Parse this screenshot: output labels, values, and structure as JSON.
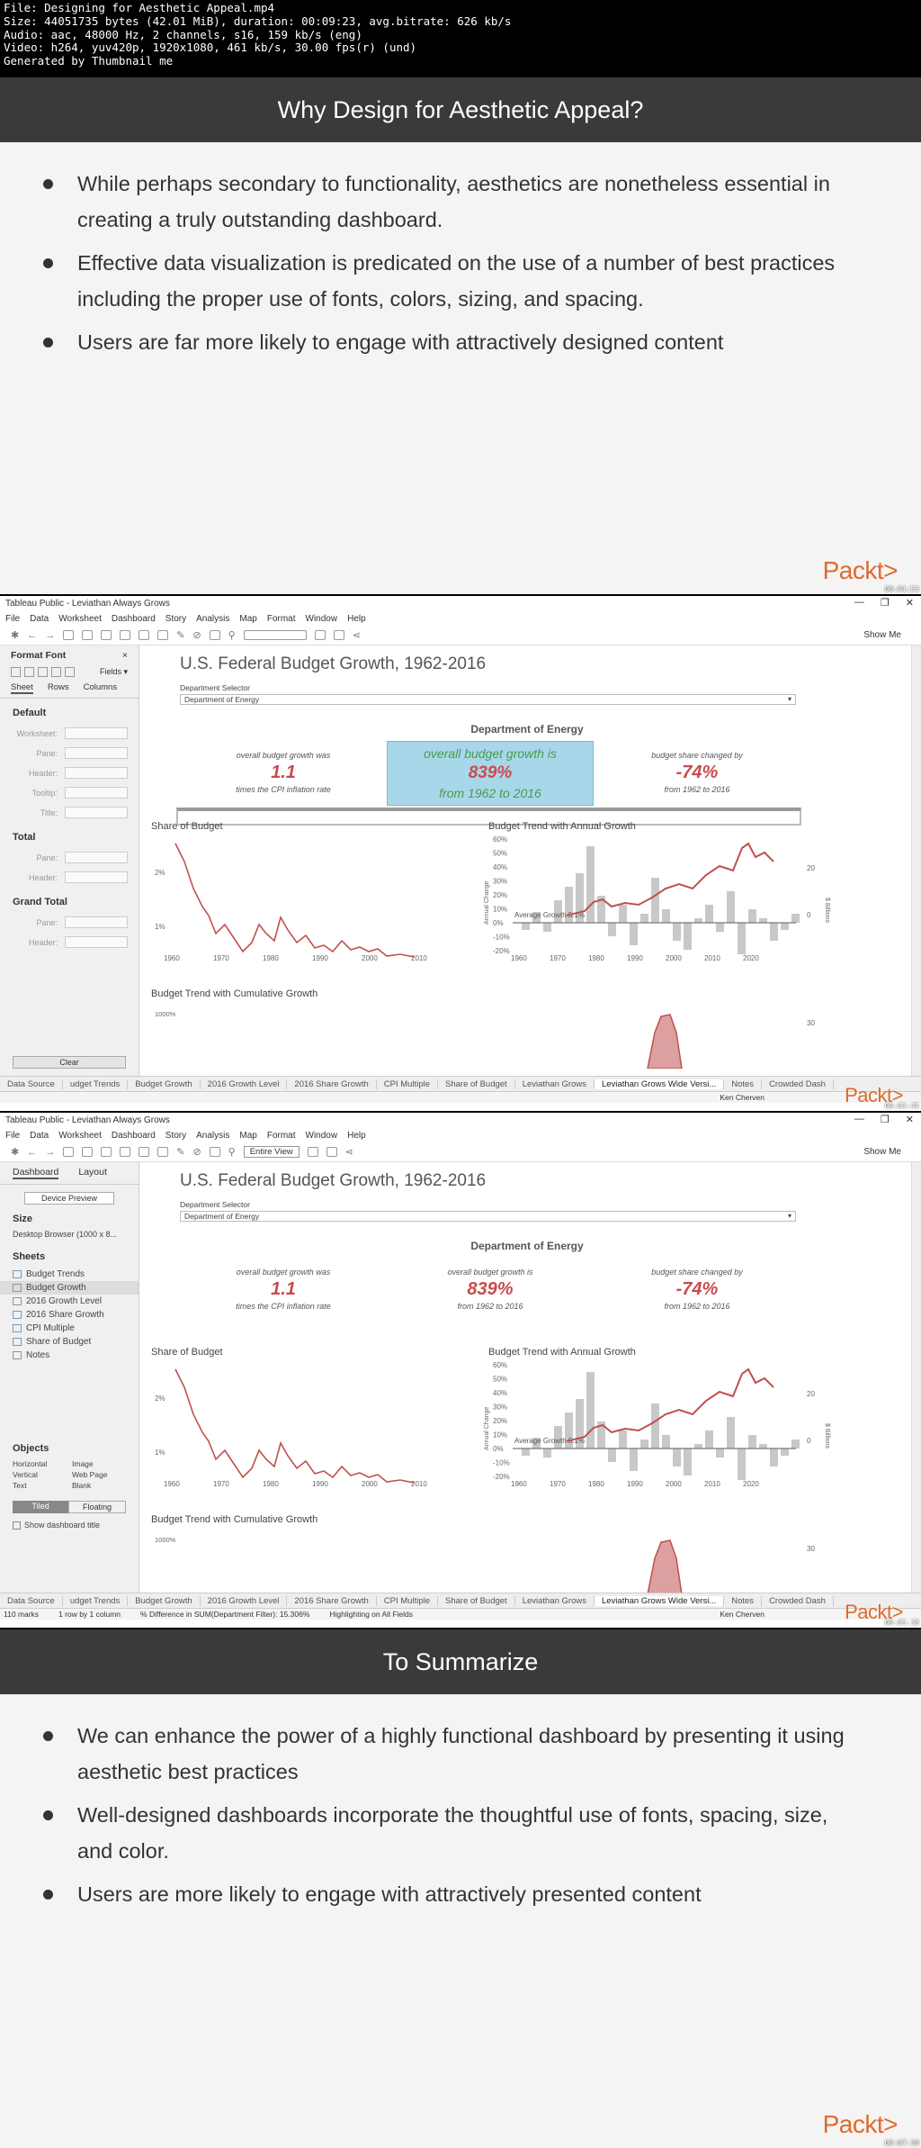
{
  "header": {
    "lines": [
      "File: Designing for Aesthetic Appeal.mp4",
      "Size: 44051735 bytes (42.01 MiB), duration: 00:09:23, avg.bitrate: 626 kb/s",
      "Audio: aac, 48000 Hz, 2 channels, s16, 159 kb/s (eng)",
      "Video: h264, yuv420p, 1920x1080, 461 kb/s, 30.00 fps(r) (und)",
      "Generated by Thumbnail me"
    ]
  },
  "frame1": {
    "title": "Why Design for Aesthetic Appeal?",
    "bullets": [
      "While perhaps secondary to functionality, aesthetics are nonetheless essential in creating a truly outstanding dashboard.",
      "Effective data visualization is predicated on the use of a number of best practices including the proper use of fonts, colors, sizing, and spacing.",
      "Users are far more likely to engage with attractively designed content"
    ],
    "logo": "Packt>",
    "timestamp": "00:01:53"
  },
  "app": {
    "window_title": "Tableau Public - Leviathan Always Grows",
    "menu": [
      "File",
      "Data",
      "Worksheet",
      "Dashboard",
      "Story",
      "Analysis",
      "Map",
      "Format",
      "Window",
      "Help"
    ],
    "show_me": "Show Me",
    "dashboard_title": "U.S. Federal Budget Growth, 1962-2016",
    "selector_label": "Department Selector",
    "selector_value": "Department of Energy",
    "department": "Department of Energy",
    "kpis": [
      {
        "pre": "overall budget growth was",
        "value": "1.1",
        "post": "times the CPI inflation rate"
      },
      {
        "pre": "overall budget growth is",
        "value": "839%",
        "post": "from 1962 to 2016"
      },
      {
        "pre": "budget share changed by",
        "value": "-74%",
        "post": "from 1962 to 2016"
      }
    ],
    "charts": {
      "share": "Share of Budget",
      "trend": "Budget Trend with Annual Growth",
      "cumulative": "Budget Trend with Cumulative Growth",
      "avg_label": "Average Growth 5.1%",
      "annual_change": "Annual Change",
      "billions": "$ Billions",
      "share_y": [
        "2%",
        "1%"
      ],
      "years_share": [
        "1960",
        "1970",
        "1980",
        "1990",
        "2000",
        "2010"
      ],
      "years_trend": [
        "1960",
        "1970",
        "1980",
        "1990",
        "2000",
        "2010",
        "2020"
      ],
      "pct_axis": [
        "60%",
        "50%",
        "40%",
        "30%",
        "20%",
        "10%",
        "0%",
        "-10%",
        "-20%"
      ],
      "right_axis": [
        "20",
        "0"
      ],
      "cum_pct": "1000%",
      "cum_right": "30"
    },
    "tabs": [
      "Data Source",
      "udget Trends",
      "Budget Growth",
      "2016 Growth Level",
      "2016 Share Growth",
      "CPI Multiple",
      "Share of Budget",
      "Leviathan Grows",
      "Leviathan Grows Wide Versi...",
      "Notes",
      "Crowded Dash"
    ],
    "user": "Ken Cherven"
  },
  "frame2": {
    "toolbar_view": "",
    "panel_title": "Format Font",
    "panel_fields": "Fields ▾",
    "panel_tabs": [
      "Sheet",
      "Rows",
      "Columns"
    ],
    "sections": [
      {
        "title": "Default",
        "rows": [
          "Worksheet:",
          "Pane:",
          "Header:",
          "Tooltip:",
          "Title:"
        ]
      },
      {
        "title": "Total",
        "rows": [
          "Pane:",
          "Header:"
        ]
      },
      {
        "title": "Grand Total",
        "rows": [
          "Pane:",
          "Header:"
        ]
      }
    ],
    "clear": "Clear",
    "timestamp": "00:03:45"
  },
  "frame3": {
    "toolbar_view": "Entire View",
    "panel_tabs": [
      "Dashboard",
      "Layout"
    ],
    "device_preview": "Device Preview",
    "size_label": "Size",
    "size_value": "Desktop Browser (1000 x 8...",
    "sheets_label": "Sheets",
    "sheets": [
      "Budget Trends",
      "Budget Growth",
      "2016 Growth Level",
      "2016 Share Growth",
      "CPI Multiple",
      "Share of Budget",
      "Notes"
    ],
    "objects_label": "Objects",
    "objects": [
      "Horizontal",
      "Image",
      "Vertical",
      "Web Page",
      "Text",
      "Blank"
    ],
    "tiled": "Tiled",
    "floating": "Floating",
    "show_title": "Show dashboard title",
    "status": [
      "110 marks",
      "1 row by 1 column",
      "% Difference in SUM(Department Filter): 15.306%",
      "Highlighting on All Fields"
    ],
    "timestamp": "00:05:38"
  },
  "frame4": {
    "title": "To Summarize",
    "bullets": [
      "We can enhance the power of a highly functional dashboard by presenting it using aesthetic best practices",
      "Well-designed dashboards incorporate the thoughtful use of fonts, spacing, size, and color.",
      "Users are more likely to engage with attractively presented content"
    ],
    "logo": "Packt>",
    "timestamp": "00:07:30"
  }
}
